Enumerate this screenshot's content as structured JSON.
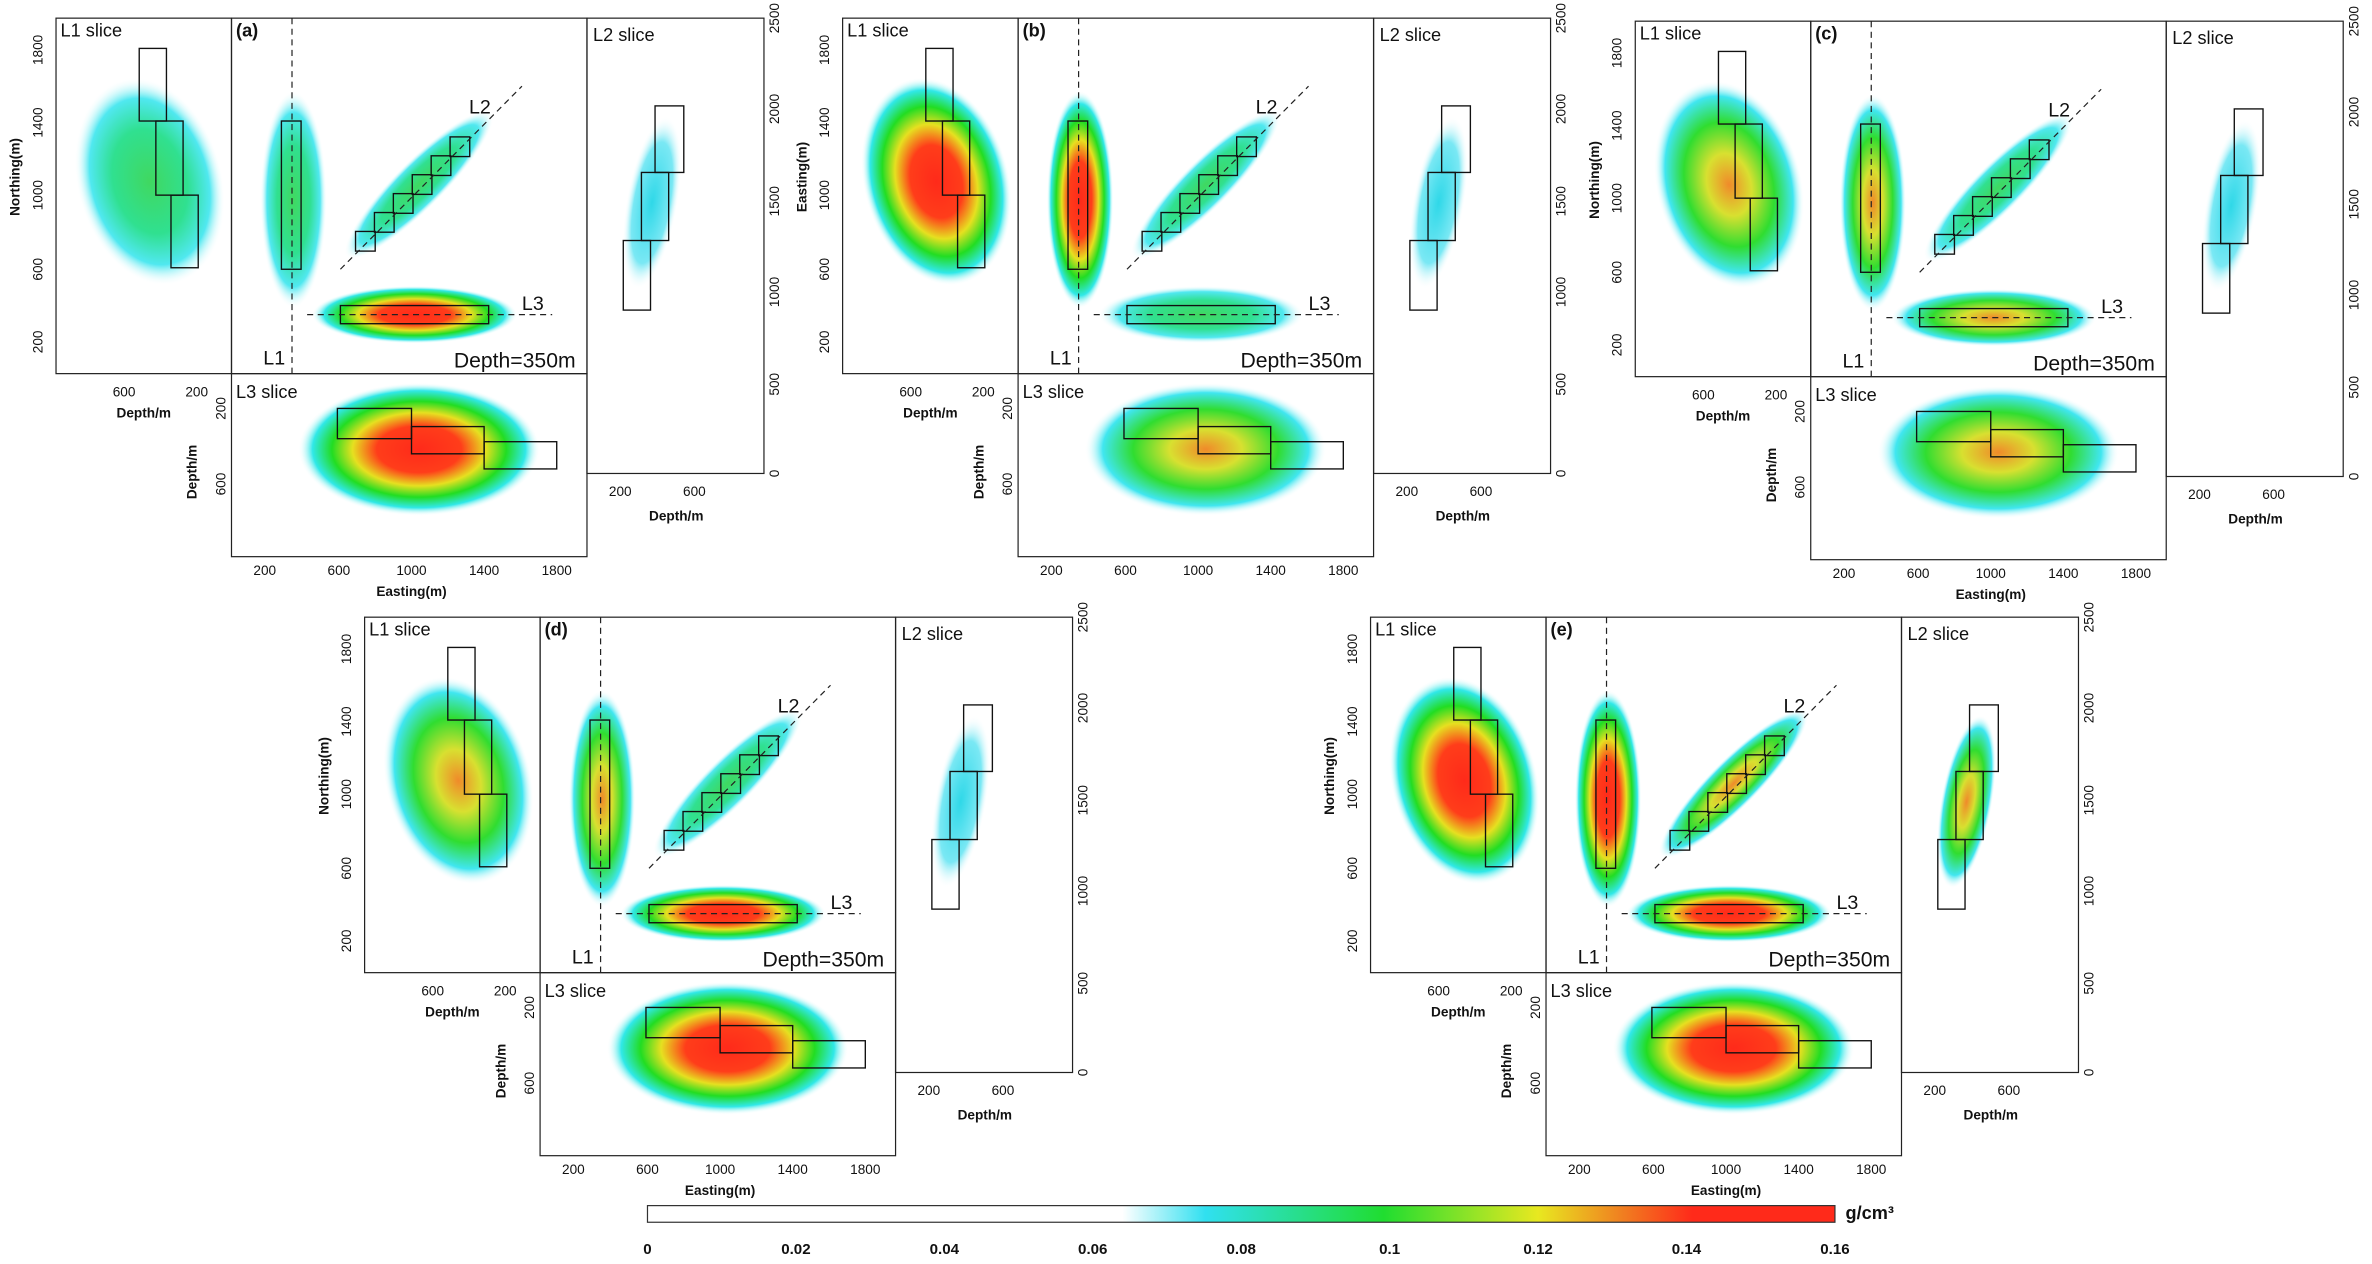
{
  "figure": {
    "panels": [
      {
        "label": "(a)",
        "l1_slice": "L1 slice",
        "l2_slice": "L2 slice",
        "l3_slice": "L3 slice",
        "line_labels": [
          "L1",
          "L2",
          "L3"
        ],
        "depth_note": "Depth=350m",
        "l1_y_title": "Northing(m)",
        "l1_y_ticks": [
          "1800",
          "1400",
          "1000",
          "600",
          "200"
        ],
        "l1_x_title": "Depth/m",
        "l1_x_ticks": [
          "600",
          "200"
        ],
        "l3_y_title": "Depth/m",
        "l3_y_ticks": [
          "200",
          "600"
        ],
        "l3_x_ticks": [
          "200",
          "600",
          "1000",
          "1400",
          "1800"
        ],
        "l3_x_title": "Easting(m)",
        "l2_x_ticks": [
          "200",
          "600"
        ],
        "l2_x_title": "Depth/m",
        "l2_y_ticks": [
          "2500",
          "2000",
          "1500",
          "1000",
          "500",
          "0"
        ]
      },
      {
        "label": "(b)",
        "l1_slice": "L1 slice",
        "l2_slice": "L2 slice",
        "l3_slice": "L3 slice",
        "line_labels": [
          "L1",
          "L2",
          "L3"
        ],
        "depth_note": "Depth=350m",
        "l1_y_title": "Easting(m)",
        "l1_y_ticks": [
          "1800",
          "1400",
          "1000",
          "600",
          "200"
        ],
        "l1_x_title": "Depth/m",
        "l1_x_ticks": [
          "600",
          "200"
        ],
        "l3_y_title": "Depth/m",
        "l3_y_ticks": [
          "200",
          "600"
        ],
        "l3_x_ticks": [
          "200",
          "600",
          "1000",
          "1400",
          "1800"
        ],
        "l2_x_ticks": [
          "200",
          "600"
        ],
        "l2_x_title": "Depth/m",
        "l2_y_ticks": [
          "2500",
          "2000",
          "1500",
          "1000",
          "500",
          "0"
        ]
      },
      {
        "label": "(c)",
        "l1_slice": "L1 slice",
        "l2_slice": "L2 slice",
        "l3_slice": "L3 slice",
        "line_labels": [
          "L1",
          "L2",
          "L3"
        ],
        "depth_note": "Depth=350m",
        "l1_y_title": "Northing(m)",
        "l1_y_ticks": [
          "1800",
          "1400",
          "1000",
          "600",
          "200"
        ],
        "l1_x_title": "Depth/m",
        "l1_x_ticks": [
          "600",
          "200"
        ],
        "l3_y_title": "Depth/m",
        "l3_y_ticks": [
          "200",
          "600"
        ],
        "l3_x_ticks": [
          "200",
          "600",
          "1000",
          "1400",
          "1800"
        ],
        "l3_x_title": "Easting(m)",
        "l2_x_ticks": [
          "200",
          "600"
        ],
        "l2_x_title": "Depth/m",
        "l2_y_ticks": [
          "2500",
          "2000",
          "1500",
          "1000",
          "500",
          "0"
        ]
      },
      {
        "label": "(d)",
        "l1_slice": "L1 slice",
        "l2_slice": "L2 slice",
        "l3_slice": "L3 slice",
        "line_labels": [
          "L1",
          "L2",
          "L3"
        ],
        "depth_note": "Depth=350m",
        "l1_y_title": "Northing(m)",
        "l1_y_ticks": [
          "1800",
          "1400",
          "1000",
          "600",
          "200"
        ],
        "l1_x_title": "Depth/m",
        "l1_x_ticks": [
          "600",
          "200"
        ],
        "l3_y_title": "Depth/m",
        "l3_y_ticks": [
          "200",
          "600"
        ],
        "l3_x_ticks": [
          "200",
          "600",
          "1000",
          "1400",
          "1800"
        ],
        "l3_x_title": "Easting(m)",
        "l2_x_ticks": [
          "200",
          "600"
        ],
        "l2_x_title": "Depth/m",
        "l2_y_ticks": [
          "2500",
          "2000",
          "1500",
          "1000",
          "500",
          "0"
        ]
      },
      {
        "label": "(e)",
        "l1_slice": "L1 slice",
        "l2_slice": "L2 slice",
        "l3_slice": "L3 slice",
        "line_labels": [
          "L1",
          "L2",
          "L3"
        ],
        "depth_note": "Depth=350m",
        "l1_y_title": "Northing(m)",
        "l1_y_ticks": [
          "1800",
          "1400",
          "1000",
          "600",
          "200"
        ],
        "l1_x_title": "Depth/m",
        "l1_x_ticks": [
          "600",
          "200"
        ],
        "l3_y_title": "Depth/m",
        "l3_y_ticks": [
          "200",
          "600"
        ],
        "l3_x_ticks": [
          "200",
          "600",
          "1000",
          "1400",
          "1800"
        ],
        "l3_x_title": "Easting(m)",
        "l2_x_ticks": [
          "200",
          "600"
        ],
        "l2_x_title": "Depth/m",
        "l2_y_ticks": [
          "2500",
          "2000",
          "1500",
          "1000",
          "500",
          "0"
        ]
      }
    ],
    "colorbar": {
      "unit": "g/cm³",
      "lim": [
        0,
        0.16
      ],
      "ticks": [
        0,
        0.02,
        0.04,
        0.06,
        0.08,
        0.1,
        0.12,
        0.14,
        0.16
      ]
    }
  }
}
